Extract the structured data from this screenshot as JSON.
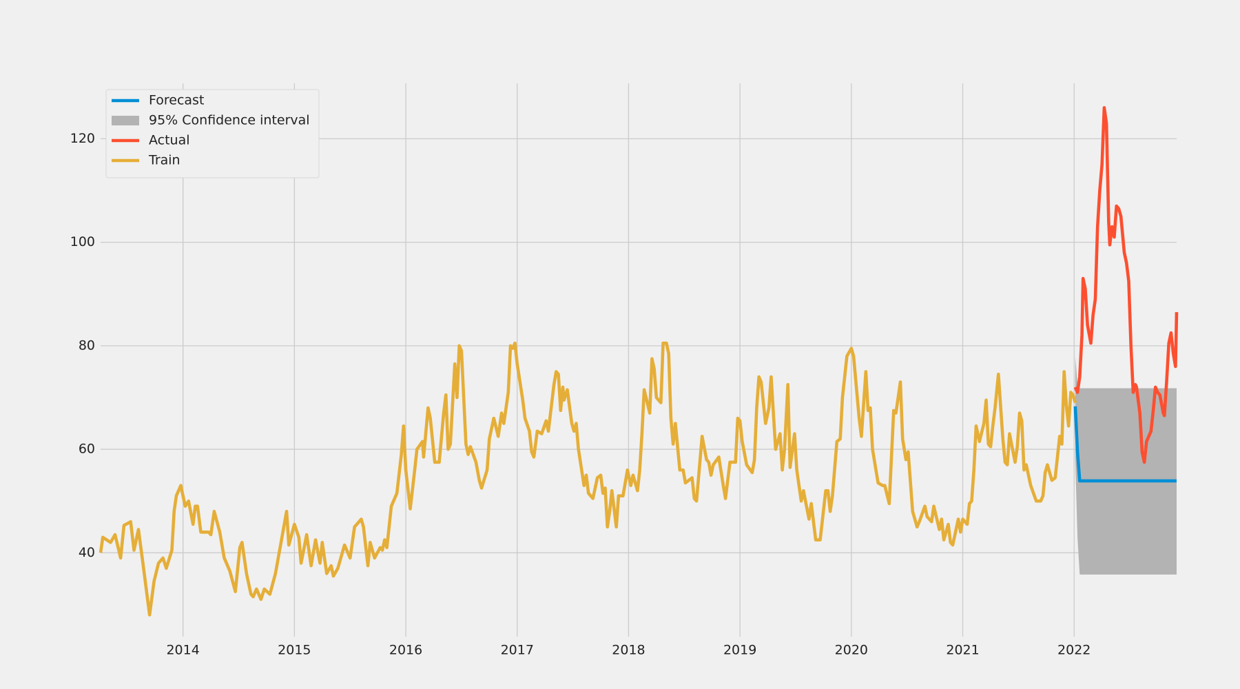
{
  "chart_data": {
    "type": "line",
    "xlim": [
      2013.26,
      2022.92
    ],
    "xticks": [
      2014,
      2015,
      2016,
      2017,
      2018,
      2019,
      2020,
      2021,
      2022
    ],
    "ylim": [
      23.8,
      130.7
    ],
    "yticks": [
      40,
      60,
      80,
      100,
      120
    ],
    "grid": true,
    "legend": "upper left",
    "series": [
      {
        "name": "Forecast",
        "color": "#008fd5",
        "x": [
          2022.01,
          2022.03,
          2022.05,
          2022.92
        ],
        "values": [
          68.3,
          59.5,
          53.9,
          53.9
        ]
      },
      {
        "name": "95% Confidence interval",
        "color": "#b3b3b3",
        "band": true,
        "x": [
          2022.01,
          2022.03,
          2022.05,
          2022.92
        ],
        "lower": [
          58,
          43,
          35.8,
          35.8
        ],
        "upper": [
          78,
          72.5,
          71.8,
          71.8
        ]
      },
      {
        "name": "Actual",
        "color": "#fc4f30",
        "x": [
          2022.01,
          2022.03,
          2022.05,
          2022.07,
          2022.08,
          2022.1,
          2022.12,
          2022.15,
          2022.17,
          2022.19,
          2022.21,
          2022.23,
          2022.25,
          2022.27,
          2022.29,
          2022.31,
          2022.32,
          2022.34,
          2022.36,
          2022.38,
          2022.4,
          2022.42,
          2022.45,
          2022.47,
          2022.49,
          2022.51,
          2022.53,
          2022.55,
          2022.56,
          2022.59,
          2022.61,
          2022.63,
          2022.65,
          2022.67,
          2022.69,
          2022.71,
          2022.73,
          2022.75,
          2022.77,
          2022.8,
          2022.81,
          2022.83,
          2022.85,
          2022.87,
          2022.89,
          2022.91,
          2022.92
        ],
        "values": [
          72,
          71,
          74,
          82,
          93,
          91,
          84,
          80.5,
          86,
          89,
          103,
          110,
          115,
          126,
          123,
          104,
          99.5,
          103,
          101,
          107,
          106.5,
          105,
          98,
          96,
          92.5,
          80,
          71,
          72.5,
          72,
          67,
          59.5,
          57.5,
          61.5,
          62.5,
          63.5,
          67.5,
          72,
          71,
          70.5,
          67,
          66.5,
          73,
          80.5,
          82.5,
          78.5,
          76,
          86.5
        ]
      },
      {
        "name": "Train",
        "color": "#e5ae38",
        "x": [
          2013.26,
          2013.28,
          2013.35,
          2013.39,
          2013.44,
          2013.47,
          2013.53,
          2013.56,
          2013.6,
          2013.64,
          2013.7,
          2013.74,
          2013.78,
          2013.82,
          2013.85,
          2013.9,
          2013.92,
          2013.94,
          2013.98,
          2014.02,
          2014.05,
          2014.09,
          2014.11,
          2014.13,
          2014.16,
          2014.23,
          2014.25,
          2014.28,
          2014.33,
          2014.37,
          2014.42,
          2014.47,
          2014.51,
          2014.53,
          2014.57,
          2014.61,
          2014.63,
          2014.66,
          2014.7,
          2014.73,
          2014.78,
          2014.83,
          2014.88,
          2014.93,
          2014.95,
          2015.0,
          2015.04,
          2015.06,
          2015.11,
          2015.15,
          2015.19,
          2015.23,
          2015.25,
          2015.29,
          2015.33,
          2015.35,
          2015.39,
          2015.45,
          2015.5,
          2015.54,
          2015.6,
          2015.62,
          2015.66,
          2015.68,
          2015.72,
          2015.77,
          2015.79,
          2015.81,
          2015.83,
          2015.87,
          2015.92,
          2015.96,
          2015.98,
          2016.0,
          2016.04,
          2016.08,
          2016.1,
          2016.15,
          2016.16,
          2016.2,
          2016.22,
          2016.26,
          2016.3,
          2016.34,
          2016.36,
          2016.38,
          2016.4,
          2016.44,
          2016.46,
          2016.48,
          2016.5,
          2016.54,
          2016.56,
          2016.58,
          2016.63,
          2016.66,
          2016.68,
          2016.73,
          2016.75,
          2016.79,
          2016.83,
          2016.86,
          2016.88,
          2016.92,
          2016.94,
          2016.96,
          2016.98,
          2017.0,
          2017.05,
          2017.07,
          2017.11,
          2017.13,
          2017.15,
          2017.18,
          2017.22,
          2017.26,
          2017.28,
          2017.33,
          2017.35,
          2017.37,
          2017.39,
          2017.41,
          2017.42,
          2017.45,
          2017.49,
          2017.51,
          2017.53,
          2017.55,
          2017.6,
          2017.62,
          2017.64,
          2017.68,
          2017.72,
          2017.75,
          2017.77,
          2017.79,
          2017.81,
          2017.83,
          2017.85,
          2017.89,
          2017.91,
          2017.95,
          2017.99,
          2018.02,
          2018.04,
          2018.08,
          2018.1,
          2018.12,
          2018.14,
          2018.19,
          2018.21,
          2018.23,
          2018.25,
          2018.29,
          2018.31,
          2018.34,
          2018.36,
          2018.38,
          2018.4,
          2018.42,
          2018.46,
          2018.49,
          2018.51,
          2018.57,
          2018.59,
          2018.61,
          2018.66,
          2018.7,
          2018.72,
          2018.74,
          2018.76,
          2018.81,
          2018.85,
          2018.87,
          2018.91,
          2018.96,
          2018.98,
          2019.0,
          2019.02,
          2019.06,
          2019.11,
          2019.13,
          2019.15,
          2019.17,
          2019.19,
          2019.23,
          2019.26,
          2019.28,
          2019.3,
          2019.32,
          2019.36,
          2019.38,
          2019.4,
          2019.43,
          2019.45,
          2019.49,
          2019.51,
          2019.55,
          2019.57,
          2019.62,
          2019.64,
          2019.68,
          2019.72,
          2019.77,
          2019.79,
          2019.81,
          2019.83,
          2019.87,
          2019.9,
          2019.92,
          2019.96,
          2020.0,
          2020.02,
          2020.07,
          2020.09,
          2020.13,
          2020.15,
          2020.17,
          2020.19,
          2020.24,
          2020.28,
          2020.3,
          2020.34,
          2020.38,
          2020.4,
          2020.44,
          2020.46,
          2020.49,
          2020.51,
          2020.55,
          2020.59,
          2020.61,
          2020.66,
          2020.68,
          2020.72,
          2020.74,
          2020.79,
          2020.81,
          2020.83,
          2020.87,
          2020.89,
          2020.91,
          2020.96,
          2020.98,
          2021.0,
          2021.04,
          2021.06,
          2021.08,
          2021.1,
          2021.12,
          2021.15,
          2021.19,
          2021.21,
          2021.23,
          2021.25,
          2021.27,
          2021.29,
          2021.32,
          2021.36,
          2021.38,
          2021.4,
          2021.42,
          2021.47,
          2021.49,
          2021.51,
          2021.53,
          2021.55,
          2021.57,
          2021.61,
          2021.66,
          2021.7,
          2021.72,
          2021.74,
          2021.76,
          2021.8,
          2021.83,
          2021.87,
          2021.89,
          2021.91,
          2021.93,
          2021.95,
          2021.97,
          2021.99,
          2022.01
        ],
        "values": [
          40,
          43,
          42,
          43.5,
          39,
          45.3,
          46,
          40.5,
          44.5,
          38,
          28,
          34.5,
          38,
          39,
          37,
          40.5,
          48,
          51,
          53,
          49,
          50,
          45.5,
          49,
          49,
          44,
          44,
          43.5,
          48,
          44,
          39,
          36.5,
          32.5,
          41,
          42,
          36,
          32,
          31.5,
          33,
          31,
          33,
          32,
          36,
          42,
          48,
          41.5,
          45.5,
          43,
          38,
          43.5,
          37.5,
          42.5,
          38,
          42,
          36,
          37.5,
          35.5,
          37,
          41.5,
          39,
          45,
          46.5,
          45,
          37.5,
          42,
          39,
          41,
          40.5,
          42.5,
          41,
          49,
          51.5,
          59,
          64.5,
          56,
          48.5,
          56,
          60,
          61.5,
          58.5,
          68,
          66,
          57.5,
          57.5,
          67,
          70.5,
          60,
          61,
          76.5,
          70,
          80,
          79,
          61,
          59,
          60.5,
          57.5,
          54,
          52.5,
          56,
          62,
          66,
          62.5,
          67,
          65,
          71,
          80,
          79.5,
          80.5,
          76.5,
          69.5,
          66,
          63.5,
          59.5,
          58.5,
          63.5,
          63,
          65.5,
          63.5,
          72.5,
          75,
          74.5,
          67.5,
          72,
          69.5,
          71.5,
          65,
          63.5,
          65,
          60,
          53,
          55,
          51.5,
          50.5,
          54.5,
          55,
          51.5,
          52.5,
          45,
          48,
          52,
          45,
          51,
          51,
          56,
          53,
          55,
          52,
          56,
          63,
          71.5,
          67,
          77.5,
          75.5,
          70,
          69,
          80.5,
          80.5,
          78.5,
          66,
          61,
          65,
          56,
          56,
          53.5,
          54.5,
          50.5,
          50,
          62.5,
          58,
          57.5,
          55,
          57,
          58.5,
          53,
          50.5,
          57.5,
          57.5,
          66,
          65.5,
          61.5,
          57,
          55.5,
          58,
          68,
          74,
          73,
          65,
          68,
          74,
          67,
          60,
          63,
          56,
          60,
          72.5,
          56.5,
          63,
          56,
          50,
          52,
          46.5,
          49.5,
          42.5,
          42.5,
          52,
          52,
          48,
          51,
          61.5,
          62,
          70,
          78,
          79.5,
          78,
          66,
          62.5,
          75,
          67.5,
          68,
          60,
          53.5,
          53,
          53,
          49.5,
          67.5,
          67,
          73,
          62,
          58,
          59.5,
          48,
          45,
          46,
          49,
          47,
          46,
          49,
          44.5,
          46.5,
          42.5,
          45.5,
          42,
          41.5,
          46.5,
          44,
          46.5,
          45.5,
          49.5,
          50,
          56,
          64.5,
          61.5,
          65,
          69.5,
          61,
          60.5,
          64.5,
          68,
          74.5,
          62,
          57.5,
          57,
          63,
          57.5,
          60.5,
          67,
          65.5,
          56,
          57,
          53,
          50,
          50,
          51,
          55.5,
          57,
          54,
          54.5,
          62.5,
          61,
          75,
          68.5,
          64.5,
          71,
          70.5,
          69
        ]
      }
    ]
  }
}
